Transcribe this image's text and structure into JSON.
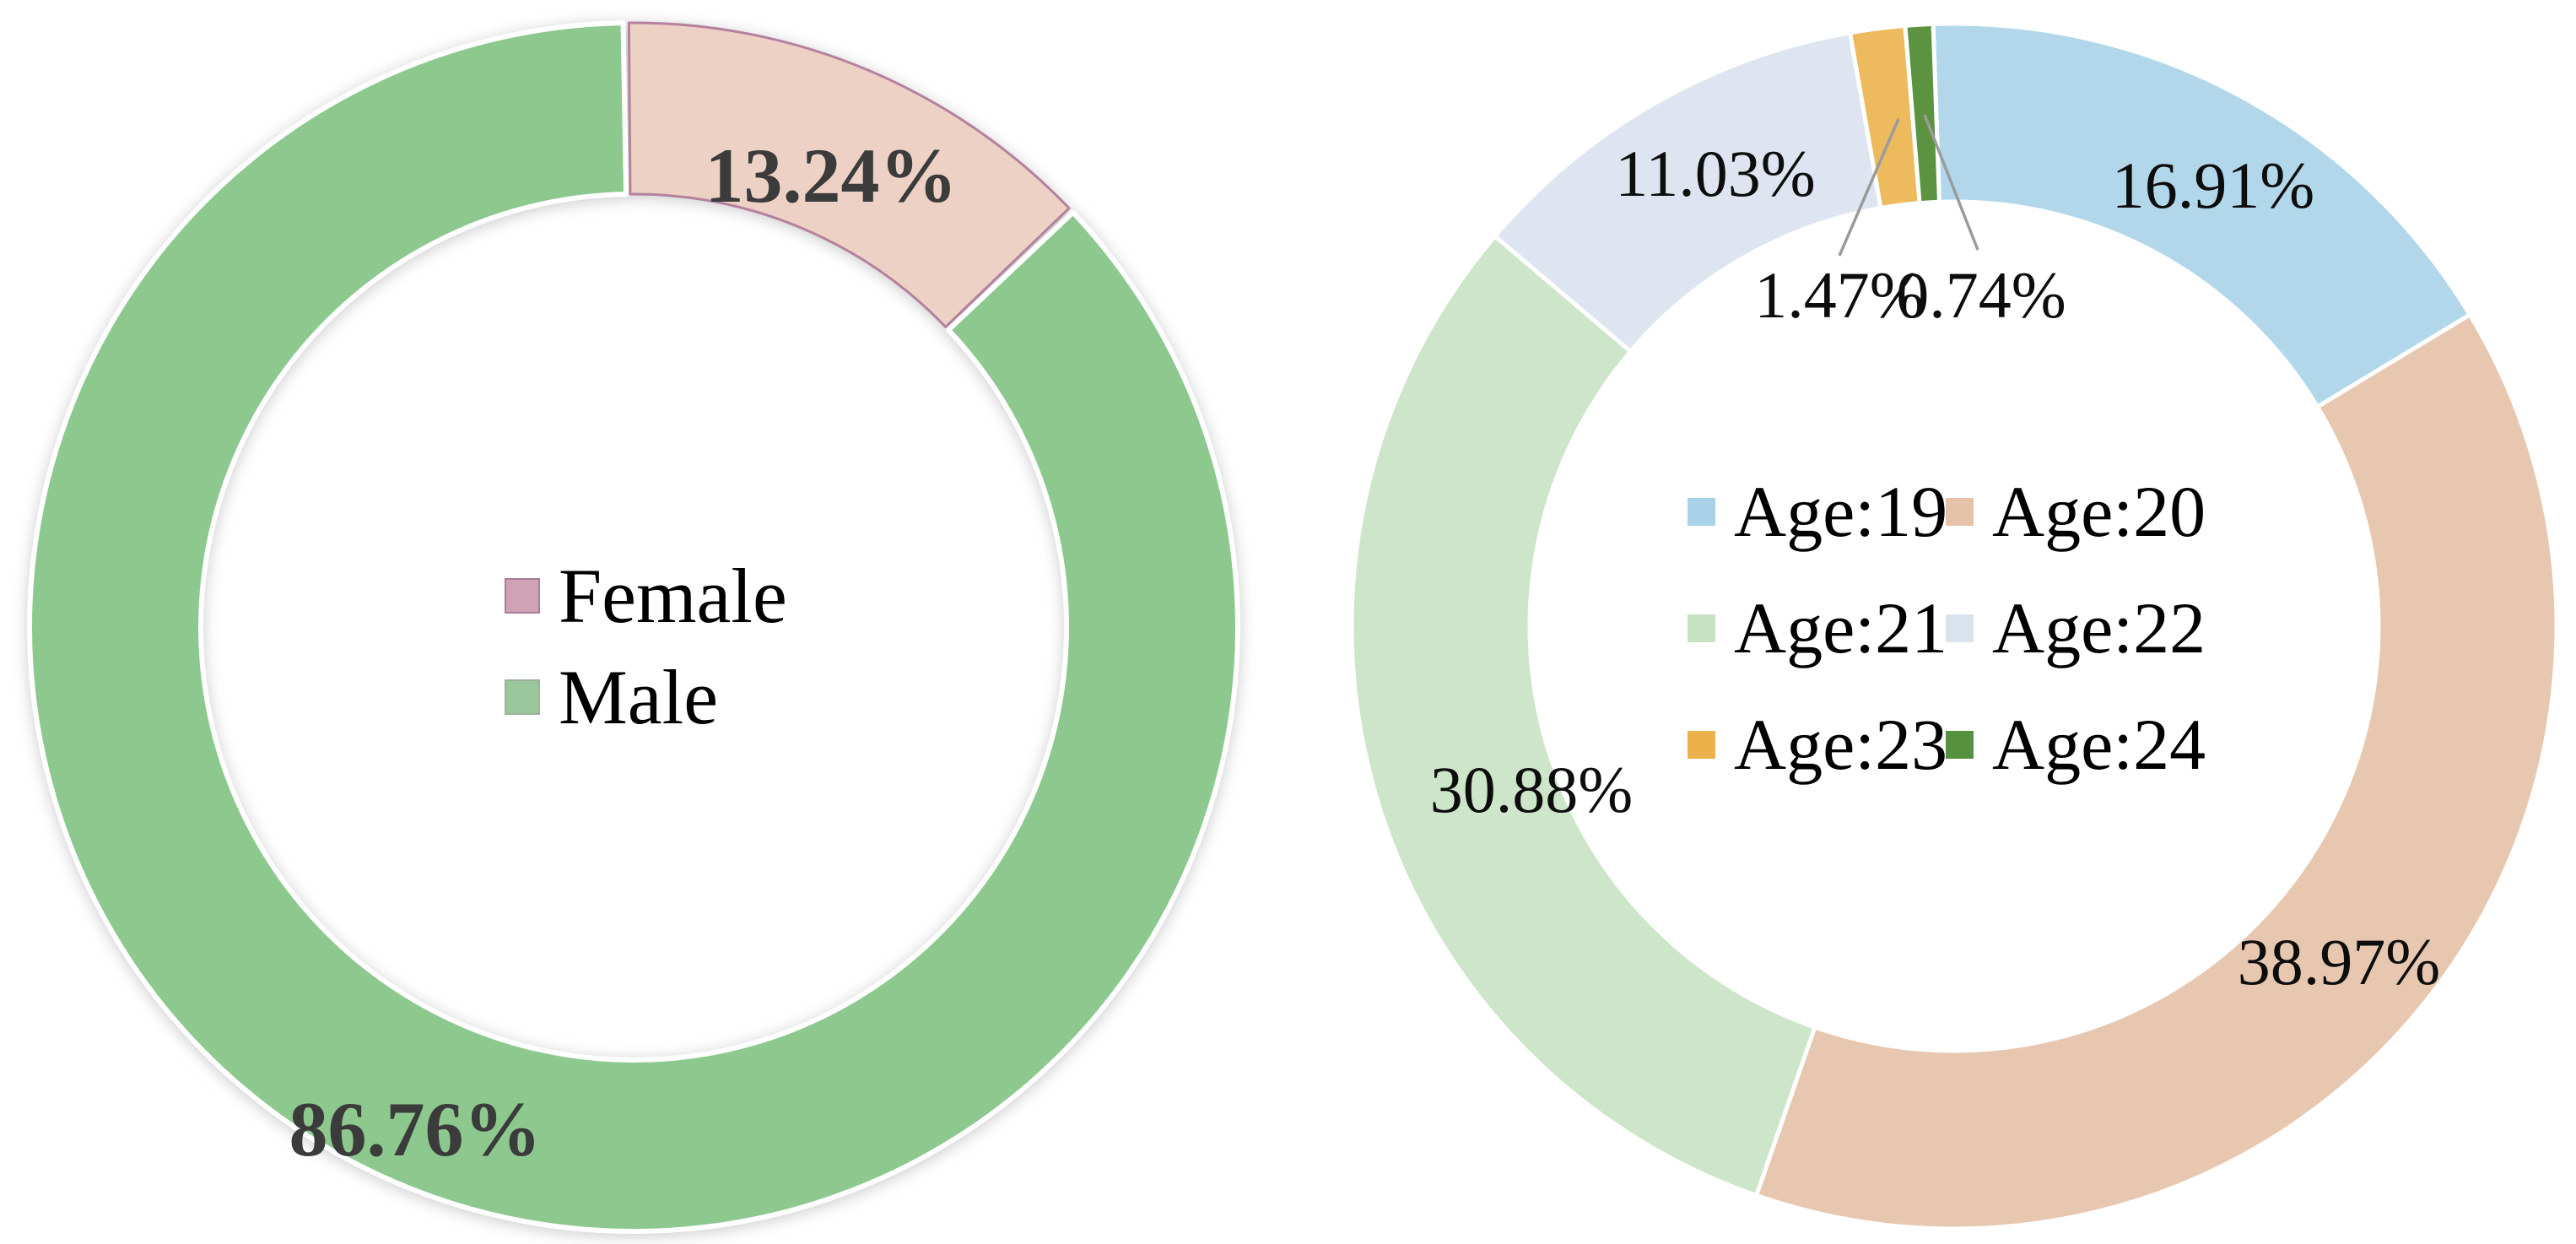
{
  "figure": {
    "background": "#ffffff",
    "leader_line_color": "#9b9b9b"
  },
  "chart_data": [
    {
      "type": "donut",
      "name": "gender-distribution",
      "categories": [
        "Female",
        "Male"
      ],
      "values": [
        13.24,
        86.76
      ],
      "pct_labels": [
        "13.24%",
        "86.76%"
      ],
      "colors": [
        "#eed1c5",
        "#8dc88f"
      ],
      "slice_borders": [
        "#b5819f",
        null
      ],
      "label_color": "#3b3b3b",
      "legend_position": "center",
      "legend": {
        "items": [
          {
            "label": "Female",
            "swatch": "#cfa3b4",
            "swatch_border": "#a87b97"
          },
          {
            "label": "Male",
            "swatch": "#9cc69c",
            "swatch_border": "#9bb29b"
          }
        ]
      }
    },
    {
      "type": "donut",
      "name": "age-distribution",
      "categories": [
        "Age:19",
        "Age:20",
        "Age:21",
        "Age:22",
        "Age:23",
        "Age:24"
      ],
      "values": [
        16.91,
        38.97,
        30.88,
        11.03,
        1.47,
        0.74
      ],
      "pct_labels": [
        "16.91%",
        "38.97%",
        "30.88%",
        "11.03%",
        "1.47%",
        "0.74%"
      ],
      "colors": [
        "#b2d7eb",
        "#e8c7b0",
        "#cde5c8",
        "#dee5f1",
        "#edbb5e",
        "#5b9341"
      ],
      "slice_borders": [
        null,
        null,
        null,
        null,
        null,
        null
      ],
      "label_color": "#0d0d0d",
      "legend_position": "center",
      "legend": {
        "items": [
          {
            "label": "Age:19",
            "swatch": "#a9d2e9"
          },
          {
            "label": "Age:20",
            "swatch": "#e5c3ab"
          },
          {
            "label": "Age:21",
            "swatch": "#c6e2c2"
          },
          {
            "label": "Age:22",
            "swatch": "#dae2ee"
          },
          {
            "label": "Age:23",
            "swatch": "#ebb24b"
          },
          {
            "label": "Age:24",
            "swatch": "#569140"
          }
        ]
      }
    }
  ]
}
